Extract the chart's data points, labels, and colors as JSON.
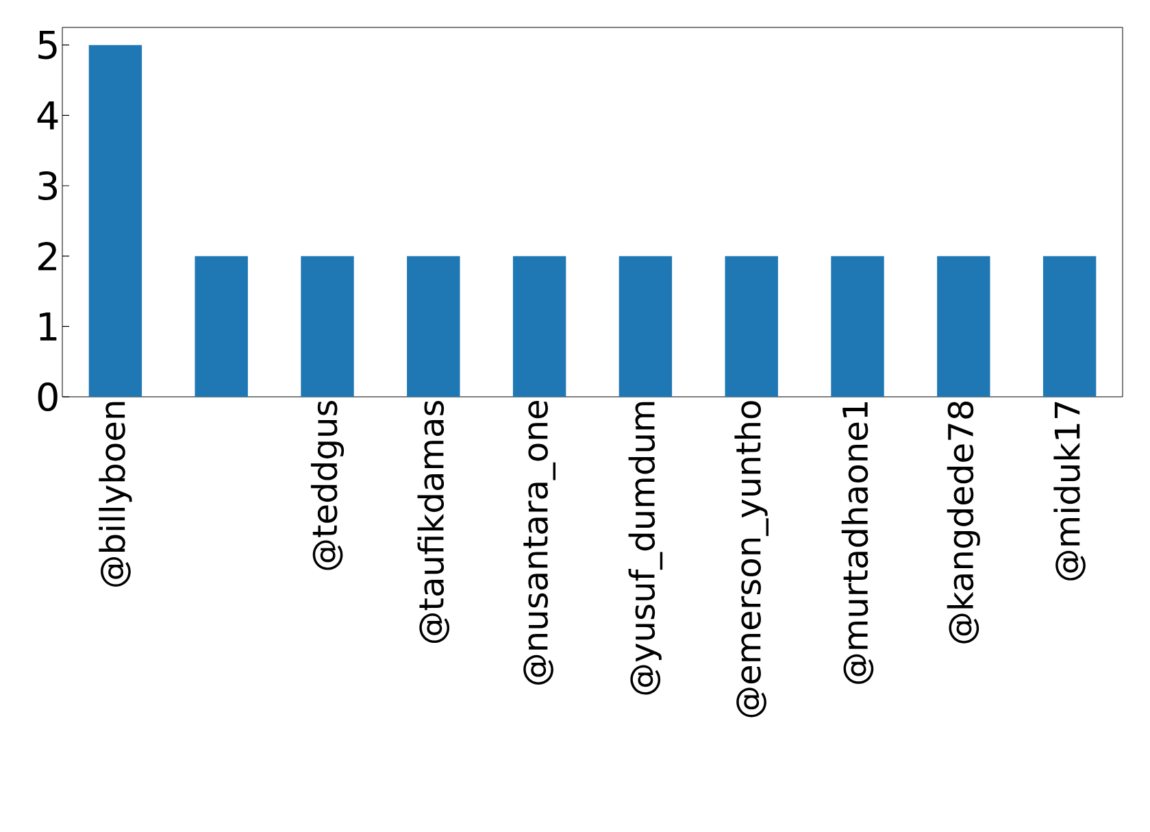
{
  "chart_data": {
    "type": "bar",
    "categories": [
      "@billyboen",
      null,
      "@teddgus",
      "@taufikdamas",
      "@nusantara_one",
      "@yusuf_dumdum",
      "@emerson_yuntho",
      "@murtadhaone1",
      "@kangdede78",
      "@miduk17"
    ],
    "values": [
      5,
      2,
      2,
      2,
      2,
      2,
      2,
      2,
      2,
      2
    ],
    "color": "#1f77b4",
    "ylim": [
      0,
      5.25
    ],
    "yticks": [
      0,
      1,
      2,
      3,
      4,
      5
    ]
  }
}
